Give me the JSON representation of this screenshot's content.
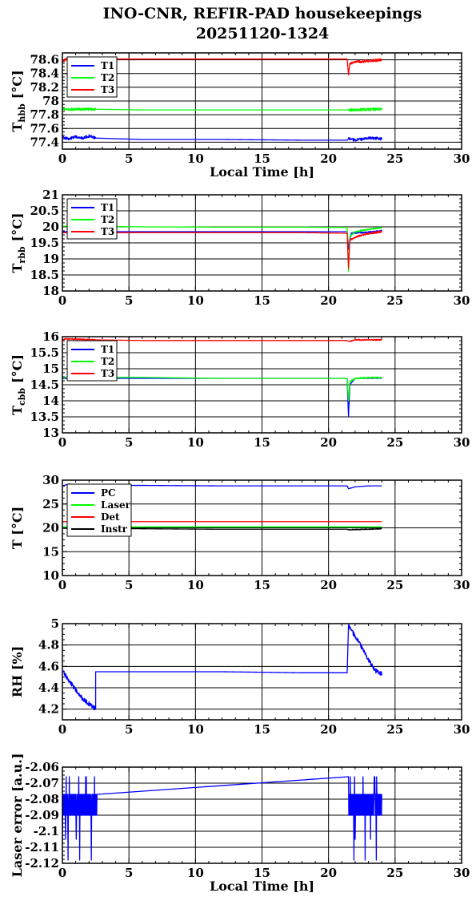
{
  "figure": {
    "title_line1": "INO-CNR, REFIR-PAD housekeepings",
    "title_line2": "20251120-1324"
  },
  "chart_data": [
    {
      "id": "hbb",
      "type": "line",
      "ylabel_main": "T",
      "ylabel_sub": "hbb",
      "ylabel_unit": "[°C]",
      "xlabel": "Local Time [h]",
      "xlim": [
        0,
        30
      ],
      "ylim": [
        77.3,
        78.7
      ],
      "yticks": [
        77.4,
        77.6,
        77.8,
        78,
        78.2,
        78.4,
        78.6
      ],
      "ytick_labels": [
        "77.4",
        "77.6",
        "77.8",
        "78",
        "78.2",
        "78.4",
        "78.6"
      ],
      "xticks": [
        0,
        5,
        10,
        15,
        20,
        25,
        30
      ],
      "xtick_labels": [
        "0",
        "5",
        "10",
        "15",
        "20",
        "25",
        "30"
      ],
      "grid": true,
      "legend_position": "top-left",
      "series": [
        {
          "name": "T1",
          "color": "#0000ff",
          "x": [
            0,
            0.5,
            1,
            1.5,
            2,
            2.5,
            6,
            12,
            18,
            21.4,
            21.5,
            22,
            23,
            24
          ],
          "y": [
            77.47,
            77.45,
            77.48,
            77.46,
            77.49,
            77.46,
            77.44,
            77.44,
            77.43,
            77.43,
            77.45,
            77.43,
            77.46,
            77.45
          ],
          "noise": 0.02,
          "noise_ranges": [
            [
              0,
              2.5
            ],
            [
              21.5,
              24
            ]
          ]
        },
        {
          "name": "T2",
          "color": "#00ff00",
          "x": [
            0,
            2.5,
            6,
            12,
            18,
            21.4,
            21.5,
            24
          ],
          "y": [
            77.88,
            77.88,
            77.87,
            77.87,
            77.87,
            77.87,
            77.87,
            77.88
          ],
          "noise": 0.02,
          "noise_ranges": [
            [
              0,
              2.5
            ],
            [
              21.5,
              24
            ]
          ]
        },
        {
          "name": "T3",
          "color": "#ff0000",
          "x": [
            0,
            0.3,
            0.6,
            2.5,
            6,
            12,
            18,
            21.4,
            21.5,
            21.6,
            22,
            23,
            24
          ],
          "y": [
            78.58,
            78.6,
            78.61,
            78.61,
            78.61,
            78.61,
            78.61,
            78.61,
            78.38,
            78.55,
            78.57,
            78.58,
            78.6
          ],
          "noise": 0.02,
          "noise_ranges": [
            [
              0,
              2.5
            ],
            [
              21.6,
              24
            ]
          ]
        }
      ]
    },
    {
      "id": "rbb",
      "type": "line",
      "ylabel_main": "T",
      "ylabel_sub": "rbb",
      "ylabel_unit": "[°C]",
      "xlabel": "",
      "xlim": [
        0,
        30
      ],
      "ylim": [
        18,
        21
      ],
      "yticks": [
        18,
        18.5,
        19,
        19.5,
        20,
        20.5,
        21
      ],
      "ytick_labels": [
        "18",
        "18.5",
        "19",
        "19.5",
        "20",
        "20.5",
        "21"
      ],
      "xticks": [
        0,
        5,
        10,
        15,
        20,
        25,
        30
      ],
      "xtick_labels": [
        "0",
        "5",
        "10",
        "15",
        "20",
        "25",
        "30"
      ],
      "grid": true,
      "legend_position": "top-left",
      "series": [
        {
          "name": "T1",
          "color": "#0000ff",
          "x": [
            0,
            6,
            12,
            18,
            21.4,
            21.5,
            21.7,
            22.5,
            23.5,
            24
          ],
          "y": [
            19.85,
            19.85,
            19.85,
            19.85,
            19.85,
            19.3,
            19.8,
            19.82,
            19.85,
            19.88
          ],
          "noise": 0.02,
          "noise_ranges": [
            [
              21.5,
              24
            ]
          ]
        },
        {
          "name": "T2",
          "color": "#00ff00",
          "x": [
            0,
            2.5,
            6,
            12,
            18,
            21.4,
            21.5,
            21.6,
            22,
            23,
            24
          ],
          "y": [
            20.02,
            20.02,
            20.0,
            19.99,
            19.99,
            19.98,
            18.6,
            19.7,
            19.85,
            19.92,
            19.97
          ],
          "noise": 0.02,
          "noise_ranges": [
            [
              21.6,
              24
            ]
          ]
        },
        {
          "name": "T3",
          "color": "#ff0000",
          "x": [
            0,
            6,
            12,
            18,
            21.4,
            21.5,
            21.6,
            22.5,
            23.5,
            24
          ],
          "y": [
            19.82,
            19.82,
            19.82,
            19.82,
            19.8,
            18.7,
            19.6,
            19.75,
            19.82,
            19.85
          ],
          "noise": 0.03,
          "noise_ranges": [
            [
              21.6,
              24
            ]
          ]
        }
      ]
    },
    {
      "id": "cbb",
      "type": "line",
      "ylabel_main": "T",
      "ylabel_sub": "cbb",
      "ylabel_unit": "[°C]",
      "xlabel": "",
      "xlim": [
        0,
        30
      ],
      "ylim": [
        13,
        16
      ],
      "yticks": [
        13,
        13.5,
        14,
        14.5,
        15,
        15.5,
        16
      ],
      "ytick_labels": [
        "13",
        "13.5",
        "14",
        "14.5",
        "15",
        "15.5",
        "16"
      ],
      "xticks": [
        0,
        5,
        10,
        15,
        20,
        25,
        30
      ],
      "xtick_labels": [
        "0",
        "5",
        "10",
        "15",
        "20",
        "25",
        "30"
      ],
      "grid": true,
      "legend_position": "top-left",
      "series": [
        {
          "name": "T1",
          "color": "#0000ff",
          "x": [
            0,
            12,
            21.4,
            21.5,
            21.6,
            22,
            24
          ],
          "y": [
            14.7,
            14.7,
            14.7,
            13.5,
            14.5,
            14.7,
            14.7
          ],
          "noise": 0.0,
          "noise_ranges": []
        },
        {
          "name": "T2",
          "color": "#00ff00",
          "x": [
            0,
            6,
            12,
            18,
            21.4,
            21.5,
            21.6,
            22,
            23,
            24
          ],
          "y": [
            14.73,
            14.73,
            14.7,
            14.7,
            14.7,
            14.0,
            14.6,
            14.7,
            14.72,
            14.72
          ],
          "noise": 0.02,
          "noise_ranges": [
            [
              21.6,
              24
            ]
          ]
        },
        {
          "name": "T3",
          "color": "#ff0000",
          "x": [
            0,
            0.3,
            2.5,
            6,
            12,
            18,
            21.4,
            21.5,
            22,
            24
          ],
          "y": [
            15.9,
            15.93,
            15.9,
            15.88,
            15.88,
            15.88,
            15.88,
            15.85,
            15.9,
            15.9
          ],
          "noise": 0.02,
          "noise_ranges": [
            [
              0,
              2.5
            ],
            [
              21.6,
              24
            ]
          ]
        }
      ]
    },
    {
      "id": "temps",
      "type": "line",
      "ylabel_main": "T [°C]",
      "ylabel_sub": "",
      "ylabel_unit": "",
      "xlabel": "",
      "xlim": [
        0,
        30
      ],
      "ylim": [
        10,
        30
      ],
      "yticks": [
        10,
        15,
        20,
        25,
        30
      ],
      "ytick_labels": [
        "10",
        "15",
        "20",
        "25",
        "30"
      ],
      "xticks": [
        0,
        5,
        10,
        15,
        20,
        25,
        30
      ],
      "xtick_labels": [
        "0",
        "5",
        "10",
        "15",
        "20",
        "25",
        "30"
      ],
      "grid": true,
      "legend_position": "top-left",
      "series": [
        {
          "name": "PC",
          "color": "#0000ff",
          "x": [
            0,
            0.5,
            1,
            1.5,
            2.5,
            6,
            12,
            18,
            21.4,
            21.5,
            22,
            23,
            24
          ],
          "y": [
            28.8,
            29.2,
            29.0,
            28.9,
            28.9,
            28.9,
            28.8,
            28.8,
            28.8,
            28.2,
            28.6,
            28.8,
            28.8
          ],
          "noise": 0.0,
          "noise_ranges": []
        },
        {
          "name": "Laser",
          "color": "#00ff00",
          "x": [
            0,
            6,
            12,
            18,
            24
          ],
          "y": [
            20.2,
            20.2,
            20.2,
            20.2,
            20.2
          ],
          "noise": 0.0,
          "noise_ranges": []
        },
        {
          "name": "Det",
          "color": "#ff0000",
          "x": [
            0,
            6,
            12,
            18,
            24
          ],
          "y": [
            21.3,
            21.3,
            21.3,
            21.3,
            21.3
          ],
          "noise": 0.0,
          "noise_ranges": []
        },
        {
          "name": "Instr",
          "color": "#000000",
          "x": [
            0,
            2.5,
            6,
            12,
            18,
            21.4,
            21.5,
            24
          ],
          "y": [
            19.9,
            19.9,
            19.8,
            19.7,
            19.7,
            19.7,
            19.6,
            19.8
          ],
          "noise": 0.08,
          "noise_ranges": [
            [
              21.5,
              24
            ]
          ]
        }
      ]
    },
    {
      "id": "rh",
      "type": "line",
      "ylabel_main": "RH [%]",
      "ylabel_sub": "",
      "ylabel_unit": "",
      "xlabel": "",
      "xlim": [
        0,
        30
      ],
      "ylim": [
        4.1,
        5
      ],
      "yticks": [
        4.2,
        4.4,
        4.6,
        4.8,
        5
      ],
      "ytick_labels": [
        "4.2",
        "4.4",
        "4.6",
        "4.8",
        "5"
      ],
      "xticks": [
        0,
        5,
        10,
        15,
        20,
        25,
        30
      ],
      "xtick_labels": [
        "0",
        "5",
        "10",
        "15",
        "20",
        "25",
        "30"
      ],
      "grid": true,
      "legend_position": "none",
      "series": [
        {
          "name": "",
          "color": "#0000ff",
          "x": [
            0,
            0.1,
            0.3,
            0.6,
            1,
            1.5,
            2,
            2.5,
            2.5,
            6,
            12,
            18,
            21.4,
            21.5,
            22,
            22.5,
            23,
            23.5,
            24
          ],
          "y": [
            4.55,
            4.55,
            4.5,
            4.45,
            4.38,
            4.3,
            4.25,
            4.2,
            4.55,
            4.55,
            4.55,
            4.54,
            4.54,
            4.98,
            4.88,
            4.78,
            4.66,
            4.56,
            4.53
          ],
          "noise": 0.02,
          "noise_ranges": [
            [
              0.1,
              2.5
            ],
            [
              21.5,
              24
            ]
          ]
        }
      ]
    },
    {
      "id": "laser",
      "type": "line",
      "ylabel_main": "Laser error [a.u.]",
      "ylabel_sub": "",
      "ylabel_unit": "",
      "xlabel": "Local Time [h]",
      "xlim": [
        0,
        30
      ],
      "ylim": [
        -2.12,
        -2.06
      ],
      "yticks": [
        -2.12,
        -2.11,
        -2.1,
        -2.09,
        -2.08,
        -2.07,
        -2.06
      ],
      "ytick_labels": [
        "-2.12",
        "-2.11",
        "-2.1",
        "-2.09",
        "-2.08",
        "-2.07",
        "-2.06"
      ],
      "xticks": [
        0,
        5,
        10,
        15,
        20,
        25,
        30
      ],
      "xtick_labels": [
        "0",
        "5",
        "10",
        "15",
        "20",
        "25",
        "30"
      ],
      "grid": true,
      "legend_position": "none",
      "series": [
        {
          "name": "",
          "color": "#0000ff",
          "x": [
            0,
            2.6,
            21.5,
            24
          ],
          "y": [
            -2.09,
            -2.09,
            -2.078,
            -2.078
          ],
          "noise": 0.0,
          "noise_ranges": [],
          "band_ranges": [
            [
              0,
              2.6
            ],
            [
              21.5,
              24
            ]
          ],
          "band_low": -2.09,
          "band_high": -2.077,
          "spike_low": -2.105,
          "spike_high": -2.066,
          "spike_extreme": -2.118
        }
      ]
    }
  ]
}
